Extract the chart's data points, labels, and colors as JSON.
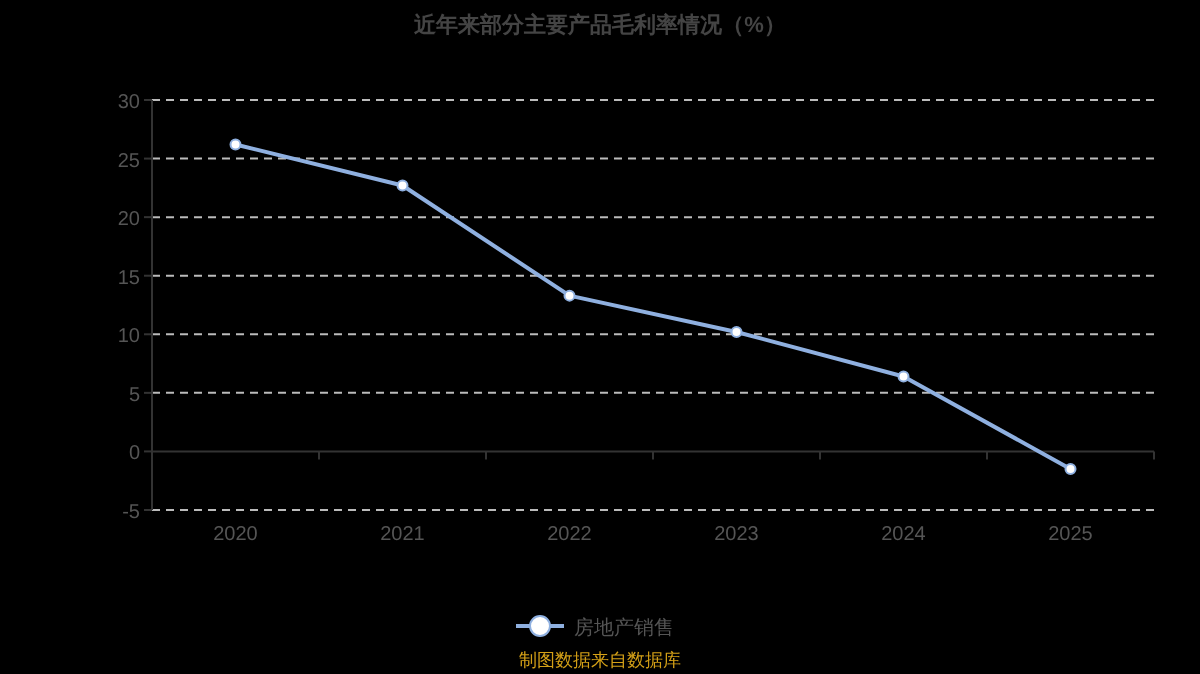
{
  "chart_data": {
    "type": "line",
    "title": "近年来部分主要产品毛利率情况（%）",
    "categories": [
      "2020",
      "2021",
      "2022",
      "2023",
      "2024",
      "2025"
    ],
    "series": [
      {
        "name": "房地产销售",
        "color": "#8fb0e0",
        "values": [
          26.2,
          22.7,
          13.3,
          10.2,
          6.4,
          -1.5
        ]
      }
    ],
    "ylim": [
      -5,
      30
    ],
    "yticks": [
      -5,
      0,
      5,
      10,
      15,
      20,
      25,
      30
    ],
    "grid": "y",
    "legend": "bottom",
    "marker": "circle",
    "annotations": [
      "制图数据来自数据库"
    ]
  }
}
